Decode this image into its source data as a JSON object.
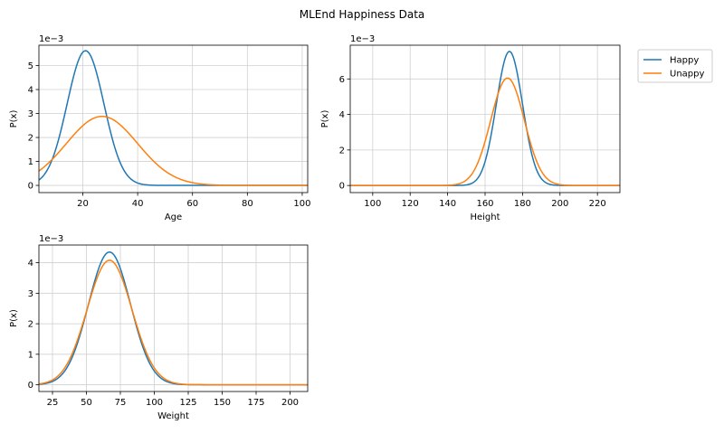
{
  "title": "MLEnd Happiness Data",
  "colors": {
    "happy": "#1f77b4",
    "unhappy": "#ff7f0e"
  },
  "legend": {
    "placement": "outside-right",
    "entries": [
      "Happy",
      "Unappy"
    ]
  },
  "chart_data": [
    {
      "type": "line",
      "xlabel": "Age",
      "ylabel": "P(x)",
      "offset_label": "1e−3",
      "xlim": [
        4,
        102
      ],
      "ylim": [
        -0.3,
        5.85
      ],
      "xticks": [
        20,
        40,
        60,
        80,
        100
      ],
      "yticks": [
        0,
        1,
        2,
        3,
        4,
        5
      ],
      "grid": true,
      "series": [
        {
          "name": "Happy",
          "curve": "gaussian",
          "mean": 21,
          "peak": 5.62
        },
        {
          "name": "Unappy",
          "curve": "gaussian",
          "mean": 27,
          "peak": 2.88
        }
      ]
    },
    {
      "type": "line",
      "xlabel": "Height",
      "ylabel": "P(x)",
      "offset_label": "1e−3",
      "xlim": [
        88,
        232
      ],
      "ylim": [
        -0.4,
        7.9
      ],
      "xticks": [
        100,
        120,
        140,
        160,
        180,
        200,
        220
      ],
      "yticks": [
        0,
        2,
        4,
        6
      ],
      "grid": true,
      "series": [
        {
          "name": "Happy",
          "curve": "gaussian",
          "mean": 173,
          "peak": 7.55
        },
        {
          "name": "Unappy",
          "curve": "gaussian",
          "mean": 172,
          "peak": 6.05
        }
      ]
    },
    {
      "type": "line",
      "xlabel": "Weight",
      "ylabel": "P(x)",
      "offset_label": "1e−3",
      "xlim": [
        15,
        213
      ],
      "ylim": [
        -0.22,
        4.58
      ],
      "xticks": [
        25,
        50,
        75,
        100,
        125,
        150,
        175,
        200
      ],
      "yticks": [
        0,
        1,
        2,
        3,
        4
      ],
      "grid": true,
      "series": [
        {
          "name": "Happy",
          "curve": "gaussian",
          "mean": 67,
          "peak": 4.35
        },
        {
          "name": "Unappy",
          "curve": "gaussian",
          "mean": 67,
          "peak": 4.08
        }
      ]
    }
  ]
}
